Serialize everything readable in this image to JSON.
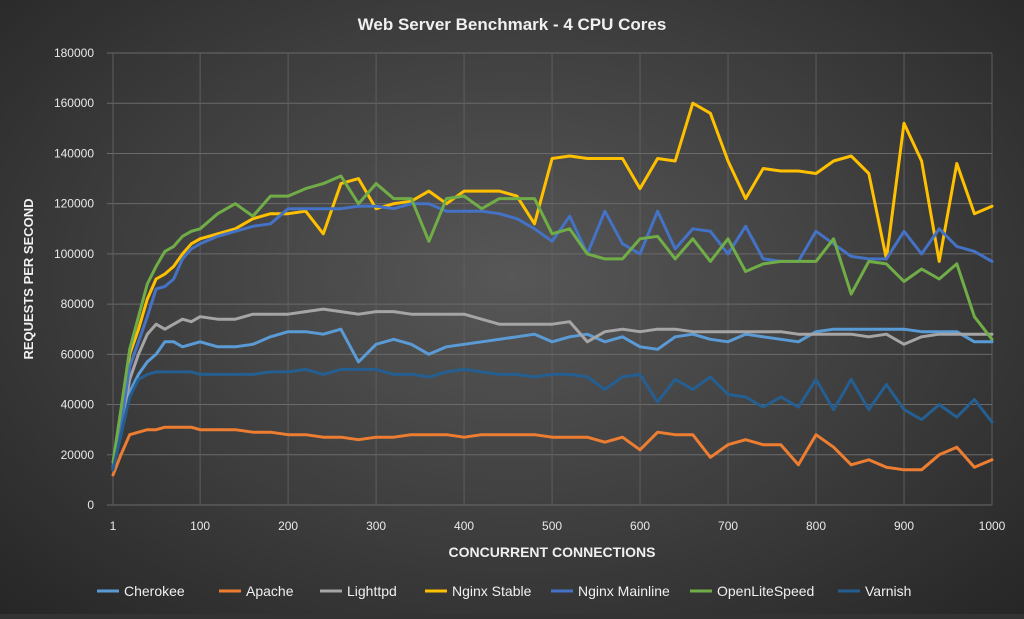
{
  "chart_data": {
    "type": "line",
    "title": "Web Server Benchmark - 4 CPU Cores",
    "xlabel": "CONCURRENT CONNECTIONS",
    "ylabel": "REQUESTS PER SECOND",
    "xlim": [
      1,
      1000
    ],
    "ylim": [
      0,
      180000
    ],
    "xticks": [
      1,
      100,
      200,
      300,
      400,
      500,
      600,
      700,
      800,
      900,
      1000
    ],
    "yticks": [
      0,
      20000,
      40000,
      60000,
      80000,
      100000,
      120000,
      140000,
      160000,
      180000
    ],
    "grid": true,
    "legend": "bottom",
    "x": [
      1,
      10,
      20,
      30,
      40,
      50,
      60,
      70,
      80,
      90,
      100,
      120,
      140,
      160,
      180,
      200,
      220,
      240,
      260,
      280,
      300,
      320,
      340,
      360,
      380,
      400,
      420,
      440,
      460,
      480,
      500,
      520,
      540,
      560,
      580,
      600,
      620,
      640,
      660,
      680,
      700,
      720,
      740,
      760,
      780,
      800,
      820,
      840,
      860,
      880,
      900,
      920,
      940,
      960,
      980,
      1000
    ],
    "series": [
      {
        "name": "Cherokee",
        "color": "#5b9bd5",
        "values": [
          15000,
          28000,
          45000,
          52000,
          57000,
          60000,
          65000,
          65000,
          63000,
          64000,
          65000,
          63000,
          63000,
          64000,
          67000,
          69000,
          69000,
          68000,
          70000,
          57000,
          64000,
          66000,
          64000,
          60000,
          63000,
          64000,
          65000,
          66000,
          67000,
          68000,
          65000,
          67000,
          68000,
          65000,
          67000,
          63000,
          62000,
          67000,
          68000,
          66000,
          65000,
          68000,
          67000,
          66000,
          65000,
          69000,
          70000,
          70000,
          70000,
          70000,
          70000,
          69000,
          69000,
          69000,
          65000,
          65000
        ]
      },
      {
        "name": "Apache",
        "color": "#ed7d31",
        "values": [
          12000,
          20000,
          28000,
          29000,
          30000,
          30000,
          31000,
          31000,
          31000,
          31000,
          30000,
          30000,
          30000,
          29000,
          29000,
          28000,
          28000,
          27000,
          27000,
          26000,
          27000,
          27000,
          28000,
          28000,
          28000,
          27000,
          28000,
          28000,
          28000,
          28000,
          27000,
          27000,
          27000,
          25000,
          27000,
          22000,
          29000,
          28000,
          28000,
          19000,
          24000,
          26000,
          24000,
          24000,
          16000,
          28000,
          23000,
          16000,
          18000,
          15000,
          14000,
          14000,
          20000,
          23000,
          15000,
          18000
        ]
      },
      {
        "name": "Lighttpd",
        "color": "#a5a5a5",
        "values": [
          14000,
          30000,
          50000,
          60000,
          68000,
          72000,
          70000,
          72000,
          74000,
          73000,
          75000,
          74000,
          74000,
          76000,
          76000,
          76000,
          77000,
          78000,
          77000,
          76000,
          77000,
          77000,
          76000,
          76000,
          76000,
          76000,
          74000,
          72000,
          72000,
          72000,
          72000,
          73000,
          65000,
          69000,
          70000,
          69000,
          70000,
          70000,
          69000,
          69000,
          69000,
          69000,
          69000,
          69000,
          68000,
          68000,
          68000,
          68000,
          67000,
          68000,
          64000,
          67000,
          68000,
          68000,
          68000,
          68000
        ]
      },
      {
        "name": "Nginx Stable",
        "color": "#ffc000",
        "values": [
          15000,
          35000,
          60000,
          70000,
          82000,
          90000,
          92000,
          95000,
          100000,
          104000,
          106000,
          108000,
          110000,
          114000,
          116000,
          116000,
          117000,
          108000,
          128000,
          130000,
          118000,
          120000,
          121000,
          125000,
          120000,
          125000,
          125000,
          125000,
          123000,
          112000,
          138000,
          139000,
          138000,
          138000,
          138000,
          126000,
          138000,
          137000,
          160000,
          156000,
          137000,
          122000,
          134000,
          133000,
          133000,
          132000,
          137000,
          139000,
          132000,
          98000,
          152000,
          137000,
          97000,
          136000,
          116000,
          119000
        ]
      },
      {
        "name": "Nginx Mainline",
        "color": "#4472c4",
        "values": [
          15000,
          32000,
          55000,
          65000,
          75000,
          86000,
          87000,
          90000,
          98000,
          102000,
          104000,
          107000,
          109000,
          111000,
          112000,
          118000,
          118000,
          118000,
          118000,
          119000,
          119000,
          118000,
          120000,
          120000,
          117000,
          117000,
          117000,
          116000,
          114000,
          110000,
          105000,
          115000,
          100000,
          117000,
          104000,
          100000,
          117000,
          102000,
          110000,
          109000,
          100000,
          111000,
          98000,
          97000,
          97000,
          109000,
          104000,
          99000,
          98000,
          98000,
          109000,
          100000,
          110000,
          103000,
          101000,
          97000
        ]
      },
      {
        "name": "OpenLiteSpeed",
        "color": "#70ad47",
        "values": [
          17000,
          38000,
          62000,
          75000,
          88000,
          95000,
          101000,
          103000,
          107000,
          109000,
          110000,
          116000,
          120000,
          115000,
          123000,
          123000,
          126000,
          128000,
          131000,
          120000,
          128000,
          122000,
          122000,
          105000,
          122000,
          123000,
          118000,
          122000,
          122000,
          122000,
          108000,
          110000,
          100000,
          98000,
          98000,
          106000,
          107000,
          98000,
          106000,
          97000,
          106000,
          93000,
          96000,
          97000,
          97000,
          97000,
          106000,
          84000,
          97000,
          96000,
          89000,
          94000,
          90000,
          96000,
          75000,
          66000
        ]
      },
      {
        "name": "Varnish",
        "color": "#255e91",
        "values": [
          14000,
          28000,
          43000,
          50000,
          52000,
          53000,
          53000,
          53000,
          53000,
          53000,
          52000,
          52000,
          52000,
          52000,
          53000,
          53000,
          54000,
          52000,
          54000,
          54000,
          54000,
          52000,
          52000,
          51000,
          53000,
          54000,
          53000,
          52000,
          52000,
          51000,
          52000,
          52000,
          51000,
          46000,
          51000,
          52000,
          41000,
          50000,
          46000,
          51000,
          44000,
          43000,
          39000,
          43000,
          39000,
          50000,
          38000,
          50000,
          38000,
          48000,
          38000,
          34000,
          40000,
          35000,
          42000,
          33000
        ]
      }
    ]
  }
}
